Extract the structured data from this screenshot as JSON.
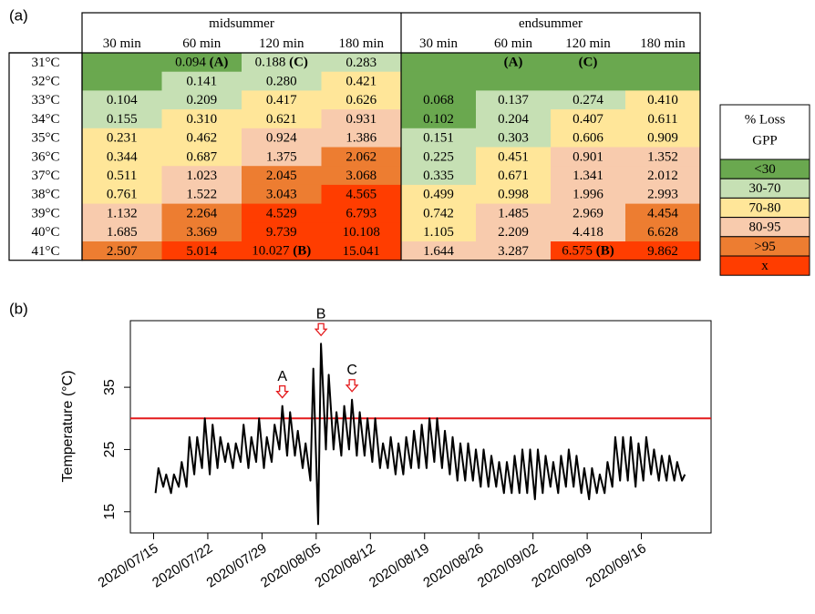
{
  "panel_a": {
    "label": "(a)",
    "groups": [
      {
        "name": "midsummer",
        "columns": [
          "30 min",
          "60 min",
          "120 min",
          "180 min"
        ]
      },
      {
        "name": "endsummer",
        "columns": [
          "30 min",
          "60 min",
          "120 min",
          "180 min"
        ]
      }
    ],
    "rows": [
      {
        "label": "31°C",
        "cells": [
          null,
          {
            "text": "0.094",
            "mark": "(A)"
          },
          {
            "text": "0.188",
            "mark": "(C)"
          },
          "0.283",
          null,
          {
            "mark": "(A)"
          },
          {
            "mark": "(C)"
          },
          null
        ],
        "colors": [
          "#6aa84f",
          "#6aa84f",
          "#c6e0b4",
          "#c6e0b4",
          "#6aa84f",
          "#6aa84f",
          "#6aa84f",
          "#6aa84f"
        ]
      },
      {
        "label": "32°C",
        "cells": [
          null,
          "0.141",
          "0.280",
          "0.421",
          null,
          null,
          null,
          null
        ],
        "colors": [
          "#6aa84f",
          "#c6e0b4",
          "#c6e0b4",
          "#ffe699",
          "#6aa84f",
          "#6aa84f",
          "#6aa84f",
          "#6aa84f"
        ]
      },
      {
        "label": "33°C",
        "cells": [
          "0.104",
          "0.209",
          "0.417",
          "0.626",
          "0.068",
          "0.137",
          "0.274",
          "0.410"
        ],
        "colors": [
          "#c6e0b4",
          "#c6e0b4",
          "#ffe699",
          "#ffe699",
          "#6aa84f",
          "#c6e0b4",
          "#c6e0b4",
          "#ffe699"
        ]
      },
      {
        "label": "34°C",
        "cells": [
          "0.155",
          "0.310",
          "0.621",
          "0.931",
          "0.102",
          "0.204",
          "0.407",
          "0.611"
        ],
        "colors": [
          "#c6e0b4",
          "#ffe699",
          "#ffe699",
          "#f8cbad",
          "#6aa84f",
          "#c6e0b4",
          "#ffe699",
          "#ffe699"
        ]
      },
      {
        "label": "35°C",
        "cells": [
          "0.231",
          "0.462",
          "0.924",
          "1.386",
          "0.151",
          "0.303",
          "0.606",
          "0.909"
        ],
        "colors": [
          "#ffe699",
          "#ffe699",
          "#f8cbad",
          "#f8cbad",
          "#c6e0b4",
          "#c6e0b4",
          "#ffe699",
          "#ffe699"
        ]
      },
      {
        "label": "36°C",
        "cells": [
          "0.344",
          "0.687",
          "1.375",
          "2.062",
          "0.225",
          "0.451",
          "0.901",
          "1.352"
        ],
        "colors": [
          "#ffe699",
          "#ffe699",
          "#f8cbad",
          "#ed7d31",
          "#c6e0b4",
          "#ffe699",
          "#f8cbad",
          "#f8cbad"
        ]
      },
      {
        "label": "37°C",
        "cells": [
          "0.511",
          "1.023",
          "2.045",
          "3.068",
          "0.335",
          "0.671",
          "1.341",
          "2.012"
        ],
        "colors": [
          "#ffe699",
          "#f8cbad",
          "#ed7d31",
          "#ed7d31",
          "#c6e0b4",
          "#ffe699",
          "#f8cbad",
          "#f8cbad"
        ]
      },
      {
        "label": "38°C",
        "cells": [
          "0.761",
          "1.522",
          "3.043",
          "4.565",
          "0.499",
          "0.998",
          "1.996",
          "2.993"
        ],
        "colors": [
          "#ffe699",
          "#f8cbad",
          "#ed7d31",
          "#ff3d00",
          "#ffe699",
          "#ffe699",
          "#f8cbad",
          "#f8cbad"
        ]
      },
      {
        "label": "39°C",
        "cells": [
          "1.132",
          "2.264",
          "4.529",
          "6.793",
          "0.742",
          "1.485",
          "2.969",
          "4.454"
        ],
        "colors": [
          "#f8cbad",
          "#ed7d31",
          "#ff3d00",
          "#ff3d00",
          "#ffe699",
          "#f8cbad",
          "#f8cbad",
          "#ed7d31"
        ]
      },
      {
        "label": "40°C",
        "cells": [
          "1.685",
          "3.369",
          "9.739",
          "10.108",
          "1.105",
          "2.209",
          "4.418",
          "6.628"
        ],
        "colors": [
          "#f8cbad",
          "#ed7d31",
          "#ff3d00",
          "#ff3d00",
          "#ffe699",
          "#f8cbad",
          "#f8cbad",
          "#ed7d31"
        ]
      },
      {
        "label": "41°C",
        "cells": [
          "2.507",
          "5.014",
          {
            "text": "10.027",
            "mark": "(B)"
          },
          "15.041",
          "1.644",
          "3.287",
          {
            "text": "6.575",
            "mark": "(B)"
          },
          "9.862"
        ],
        "colors": [
          "#ed7d31",
          "#ff3d00",
          "#ff3d00",
          "#ff3d00",
          "#f8cbad",
          "#f8cbad",
          "#ff3d00",
          "#ff3d00"
        ]
      }
    ],
    "legend": {
      "title": [
        "% Loss",
        "GPP"
      ],
      "items": [
        {
          "label": "<30",
          "color": "#6aa84f"
        },
        {
          "label": "30-70",
          "color": "#c6e0b4"
        },
        {
          "label": "70-80",
          "color": "#ffe699"
        },
        {
          "label": "80-95",
          "color": "#f8cbad"
        },
        {
          "label": ">95",
          "color": "#ed7d31"
        },
        {
          "label": "x",
          "color": "#ff3d00"
        }
      ]
    }
  },
  "chart_data": {
    "type": "line",
    "panel_label": "(b)",
    "ylabel": "Temperature (°C)",
    "x": [
      "2020/07/15 06:00",
      "2020/07/15 15:00",
      "2020/07/16 06:00",
      "2020/07/16 15:00",
      "2020/07/17 06:00",
      "2020/07/17 15:00",
      "2020/07/18 06:00",
      "2020/07/18 15:00",
      "2020/07/19 06:00",
      "2020/07/19 15:00",
      "2020/07/20 06:00",
      "2020/07/20 15:00",
      "2020/07/21 06:00",
      "2020/07/21 15:00",
      "2020/07/22 06:00",
      "2020/07/22 15:00",
      "2020/07/23 06:00",
      "2020/07/23 15:00",
      "2020/07/24 06:00",
      "2020/07/24 15:00",
      "2020/07/25 06:00",
      "2020/07/25 15:00",
      "2020/07/26 06:00",
      "2020/07/26 15:00",
      "2020/07/27 06:00",
      "2020/07/27 15:00",
      "2020/07/28 06:00",
      "2020/07/28 15:00",
      "2020/07/29 06:00",
      "2020/07/29 15:00",
      "2020/07/30 06:00",
      "2020/07/30 15:00",
      "2020/07/31 06:00",
      "2020/07/31 15:00",
      "2020/08/01 06:00",
      "2020/08/01 15:00",
      "2020/08/02 06:00",
      "2020/08/02 15:00",
      "2020/08/03 06:00",
      "2020/08/03 15:00",
      "2020/08/04 06:00",
      "2020/08/04 15:00",
      "2020/08/05 06:00",
      "2020/08/05 15:00",
      "2020/08/06 06:00",
      "2020/08/06 15:00",
      "2020/08/07 06:00",
      "2020/08/07 15:00",
      "2020/08/08 06:00",
      "2020/08/08 15:00",
      "2020/08/09 06:00",
      "2020/08/09 15:00",
      "2020/08/10 06:00",
      "2020/08/10 15:00",
      "2020/08/11 06:00",
      "2020/08/11 15:00",
      "2020/08/12 06:00",
      "2020/08/12 15:00",
      "2020/08/13 06:00",
      "2020/08/13 15:00",
      "2020/08/14 06:00",
      "2020/08/14 15:00",
      "2020/08/15 06:00",
      "2020/08/15 15:00",
      "2020/08/16 06:00",
      "2020/08/16 15:00",
      "2020/08/17 06:00",
      "2020/08/17 15:00",
      "2020/08/18 06:00",
      "2020/08/18 15:00",
      "2020/08/19 06:00",
      "2020/08/19 15:00",
      "2020/08/20 06:00",
      "2020/08/20 15:00",
      "2020/08/21 06:00",
      "2020/08/21 15:00",
      "2020/08/22 06:00",
      "2020/08/22 15:00",
      "2020/08/23 06:00",
      "2020/08/23 15:00",
      "2020/08/24 06:00",
      "2020/08/24 15:00",
      "2020/08/25 06:00",
      "2020/08/25 15:00",
      "2020/08/26 06:00",
      "2020/08/26 15:00",
      "2020/08/27 06:00",
      "2020/08/27 15:00",
      "2020/08/28 06:00",
      "2020/08/28 15:00",
      "2020/08/29 06:00",
      "2020/08/29 15:00",
      "2020/08/30 06:00",
      "2020/08/30 15:00",
      "2020/08/31 06:00",
      "2020/08/31 15:00",
      "2020/09/01 06:00",
      "2020/09/01 15:00",
      "2020/09/02 06:00",
      "2020/09/02 15:00",
      "2020/09/03 06:00",
      "2020/09/03 15:00",
      "2020/09/04 06:00",
      "2020/09/04 15:00",
      "2020/09/05 06:00",
      "2020/09/05 15:00",
      "2020/09/06 06:00",
      "2020/09/06 15:00",
      "2020/09/07 06:00",
      "2020/09/07 15:00",
      "2020/09/08 06:00",
      "2020/09/08 15:00",
      "2020/09/09 06:00",
      "2020/09/09 15:00",
      "2020/09/10 06:00",
      "2020/09/10 15:00",
      "2020/09/11 06:00",
      "2020/09/11 15:00",
      "2020/09/12 06:00",
      "2020/09/12 15:00",
      "2020/09/13 06:00",
      "2020/09/13 15:00",
      "2020/09/14 06:00",
      "2020/09/14 15:00",
      "2020/09/15 06:00",
      "2020/09/15 15:00",
      "2020/09/16 06:00",
      "2020/09/16 15:00",
      "2020/09/17 06:00",
      "2020/09/17 15:00",
      "2020/09/18 06:00",
      "2020/09/18 15:00",
      "2020/09/19 06:00",
      "2020/09/19 15:00",
      "2020/09/20 06:00",
      "2020/09/20 15:00",
      "2020/09/21 06:00",
      "2020/09/21 15:00"
    ],
    "series": [
      {
        "color": "#000000",
        "values": [
          18,
          22,
          19,
          21,
          18,
          21,
          19,
          23,
          19,
          27,
          21,
          27,
          22,
          30,
          21,
          29,
          22,
          27,
          23,
          26,
          22,
          26,
          23,
          29,
          22,
          27,
          23,
          30,
          22,
          27,
          23,
          29,
          25,
          32,
          24,
          31,
          24,
          28,
          22,
          26,
          20,
          38,
          13,
          42,
          25,
          37,
          25,
          31,
          24,
          32,
          25,
          33,
          24,
          31,
          24,
          30,
          23,
          30,
          22,
          26,
          22,
          27,
          21,
          26,
          21,
          27,
          22,
          28,
          22,
          29,
          22,
          30,
          23,
          30,
          22,
          28,
          21,
          27,
          20,
          26,
          20,
          26,
          20,
          25,
          19,
          25,
          19,
          24,
          19,
          23,
          18,
          23,
          18,
          24,
          18,
          25,
          18,
          25,
          17,
          25,
          18,
          24,
          19,
          23,
          18,
          24,
          19,
          25,
          19,
          24,
          18,
          22,
          17,
          22,
          18,
          21,
          18,
          23,
          19,
          27,
          20,
          27,
          20,
          27,
          19,
          26,
          20,
          27,
          21,
          25,
          20,
          24,
          20,
          24,
          20,
          23,
          20,
          21
        ]
      }
    ],
    "xlim": [
      "2020/07/12",
      "2020/09/25"
    ],
    "xticks": [
      "2020/07/15",
      "2020/07/22",
      "2020/07/29",
      "2020/08/05",
      "2020/08/12",
      "2020/08/19",
      "2020/08/26",
      "2020/09/02",
      "2020/09/09",
      "2020/09/16"
    ],
    "ylim": [
      11.6,
      45.7
    ],
    "yticks": [
      15,
      25,
      35
    ],
    "hline": {
      "value": 30,
      "color": "#e41a1c"
    },
    "annotations": [
      {
        "text": "A",
        "x": "2020/07/31 15:00"
      },
      {
        "text": "B",
        "x": "2020/08/05 15:00"
      },
      {
        "text": "C",
        "x": "2020/08/09 15:00"
      }
    ],
    "annotation_color": "#e41a1c"
  }
}
